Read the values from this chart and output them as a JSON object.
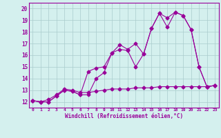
{
  "xlabel": "Windchill (Refroidissement éolien,°C)",
  "bg_color": "#d4f0ee",
  "grid_color": "#aacccc",
  "line_color": "#990099",
  "xlim": [
    -0.5,
    23.5
  ],
  "ylim": [
    11.5,
    20.5
  ],
  "xticks": [
    0,
    1,
    2,
    3,
    4,
    5,
    6,
    7,
    8,
    9,
    10,
    11,
    12,
    13,
    14,
    15,
    16,
    17,
    18,
    19,
    20,
    21,
    22,
    23
  ],
  "yticks": [
    12,
    13,
    14,
    15,
    16,
    17,
    18,
    19,
    20
  ],
  "line1_x": [
    0,
    1,
    2,
    3,
    4,
    5,
    6,
    7,
    8,
    9,
    10,
    11,
    12,
    13,
    14,
    15,
    16,
    17,
    18,
    19,
    20,
    21,
    22,
    23
  ],
  "line1_y": [
    12.1,
    12.0,
    12.0,
    12.5,
    13.0,
    12.9,
    12.6,
    12.6,
    14.0,
    14.5,
    16.2,
    16.5,
    16.4,
    15.0,
    16.1,
    18.3,
    19.6,
    18.4,
    19.7,
    19.4,
    18.2,
    15.0,
    13.3,
    13.4
  ],
  "line2_x": [
    0,
    1,
    2,
    3,
    4,
    5,
    6,
    7,
    8,
    9,
    10,
    11,
    12,
    13,
    14,
    15,
    16,
    17,
    18,
    19,
    20,
    21,
    22,
    23
  ],
  "line2_y": [
    12.1,
    12.0,
    12.0,
    12.5,
    13.0,
    12.9,
    12.6,
    14.6,
    14.9,
    15.0,
    16.2,
    16.9,
    16.5,
    17.0,
    16.1,
    18.3,
    19.6,
    19.2,
    19.7,
    19.4,
    18.2,
    15.0,
    13.3,
    13.4
  ],
  "line3_x": [
    0,
    1,
    2,
    3,
    4,
    5,
    6,
    7,
    8,
    9,
    10,
    11,
    12,
    13,
    14,
    15,
    16,
    17,
    18,
    19,
    20,
    21,
    22,
    23
  ],
  "line3_y": [
    12.1,
    12.0,
    12.2,
    12.6,
    13.1,
    13.0,
    12.8,
    12.8,
    12.9,
    13.0,
    13.1,
    13.1,
    13.1,
    13.2,
    13.2,
    13.2,
    13.3,
    13.3,
    13.3,
    13.3,
    13.3,
    13.3,
    13.3,
    13.4
  ]
}
